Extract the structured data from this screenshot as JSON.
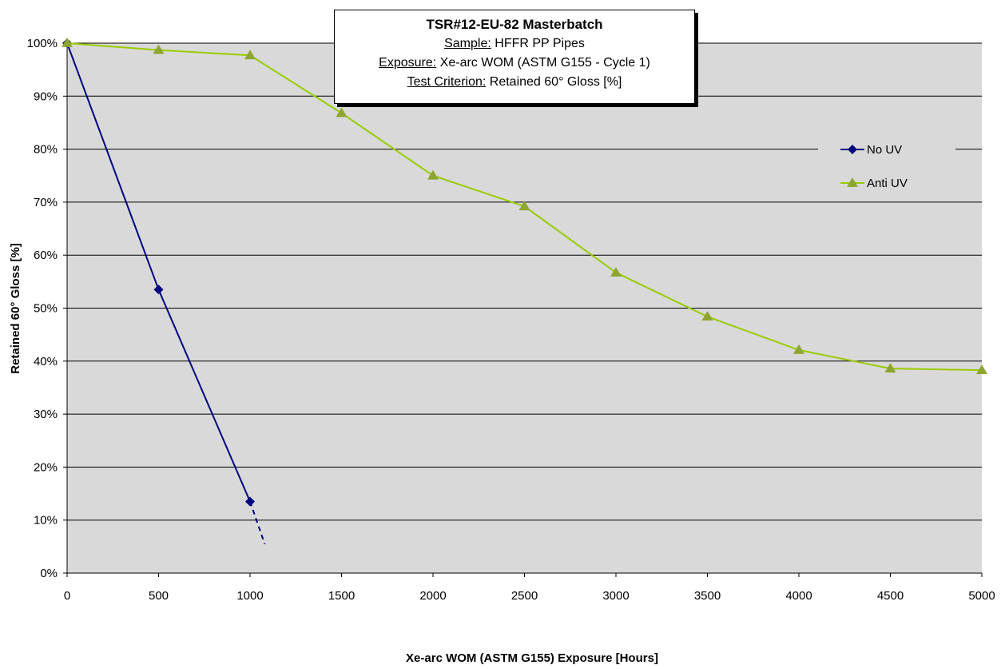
{
  "chart_data": {
    "type": "line",
    "title": "TSR#12-EU-82 Masterbatch",
    "subtitle_lines": [
      {
        "label": "Sample:",
        "value": "HFFR PP Pipes"
      },
      {
        "label": "Exposure:",
        "value": "Xe-arc WOM (ASTM G155 - Cycle 1)"
      },
      {
        "label": "Test Criterion:",
        "value": "Retained 60° Gloss [%]"
      }
    ],
    "xlabel": "Xe-arc WOM (ASTM G155) Exposure [Hours]",
    "ylabel": "Retained 60° Gloss [%]",
    "xlim": [
      0,
      5000
    ],
    "ylim": [
      0,
      100
    ],
    "x_ticks": [
      "0",
      "500",
      "1000",
      "1500",
      "2000",
      "2500",
      "3000",
      "3500",
      "4000",
      "4500",
      "5000"
    ],
    "y_ticks": [
      "0%",
      "10%",
      "20%",
      "30%",
      "40%",
      "50%",
      "60%",
      "70%",
      "80%",
      "90%",
      "100%"
    ],
    "grid": "horizontal",
    "legend_position": "right",
    "series": [
      {
        "name": "No UV",
        "color": "#00007f",
        "marker": "diamond",
        "x": [
          0,
          500,
          1000
        ],
        "y": [
          100,
          53.5,
          13.5
        ],
        "extrapolation": {
          "style": "dashed",
          "to_x": 1080,
          "to_y": 5.5
        }
      },
      {
        "name": "Anti UV",
        "color": "#99cc00",
        "marker_color": "#8ea52f",
        "marker": "triangle",
        "x": [
          0,
          500,
          1000,
          1500,
          2000,
          2500,
          3000,
          3500,
          4000,
          4500,
          5000
        ],
        "y": [
          100,
          98.7,
          97.7,
          86.8,
          75,
          69.2,
          56.7,
          48.4,
          42.1,
          38.6,
          38.3
        ]
      }
    ]
  }
}
